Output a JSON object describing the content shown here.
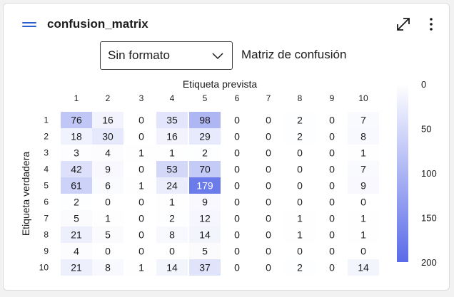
{
  "card": {
    "title": "confusion_matrix",
    "drag_icon": "drag-handle-icon",
    "expand_icon": "expand-diagonal-icon",
    "more_icon": "more-vertical-icon"
  },
  "controls": {
    "format_selected": "Sin formato",
    "chevron_icon": "chevron-down-icon",
    "matrix_label": "Matriz de confusión"
  },
  "colors": {
    "heat_low": "#ffffff",
    "heat_high": "#5a6be8",
    "heat_max_cell": "#4f5fd6",
    "accent": "#2b5fcf"
  },
  "chart_data": {
    "type": "heatmap",
    "xlabel": "Etiqueta prevista",
    "ylabel": "Etiqueta verdadera",
    "x_categories": [
      "1",
      "2",
      "3",
      "4",
      "5",
      "6",
      "7",
      "8",
      "9",
      "10"
    ],
    "y_categories": [
      "1",
      "2",
      "3",
      "4",
      "5",
      "6",
      "7",
      "8",
      "9",
      "10"
    ],
    "values": [
      [
        76,
        16,
        0,
        35,
        98,
        0,
        0,
        2,
        0,
        7
      ],
      [
        18,
        30,
        0,
        16,
        29,
        0,
        0,
        2,
        0,
        8
      ],
      [
        3,
        4,
        1,
        1,
        2,
        0,
        0,
        0,
        0,
        1
      ],
      [
        42,
        9,
        0,
        53,
        70,
        0,
        0,
        0,
        0,
        7
      ],
      [
        61,
        6,
        1,
        24,
        179,
        0,
        0,
        0,
        0,
        9
      ],
      [
        2,
        0,
        0,
        1,
        9,
        0,
        0,
        0,
        0,
        0
      ],
      [
        5,
        1,
        0,
        2,
        12,
        0,
        0,
        1,
        0,
        1
      ],
      [
        21,
        5,
        0,
        8,
        14,
        0,
        0,
        1,
        0,
        1
      ],
      [
        4,
        0,
        0,
        0,
        5,
        0,
        0,
        0,
        0,
        0
      ],
      [
        21,
        8,
        1,
        14,
        37,
        0,
        0,
        2,
        0,
        14
      ]
    ],
    "colorbar": {
      "range": [
        0,
        200
      ],
      "ticks": [
        "0",
        "50",
        "100",
        "150",
        "200"
      ]
    }
  }
}
